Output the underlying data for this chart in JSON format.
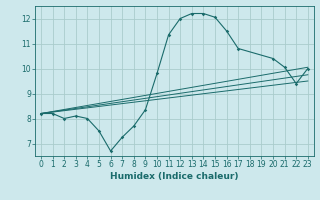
{
  "bg_color": "#cde8ec",
  "grid_color": "#aacccc",
  "line_color": "#1a6b6b",
  "xlabel": "Humidex (Indice chaleur)",
  "xlim": [
    -0.5,
    23.5
  ],
  "ylim": [
    6.5,
    12.5
  ],
  "yticks": [
    7,
    8,
    9,
    10,
    11,
    12
  ],
  "xticks": [
    0,
    1,
    2,
    3,
    4,
    5,
    6,
    7,
    8,
    9,
    10,
    11,
    12,
    13,
    14,
    15,
    16,
    17,
    18,
    19,
    20,
    21,
    22,
    23
  ],
  "main_line": {
    "x": [
      0,
      1,
      2,
      3,
      4,
      5,
      6,
      7,
      8,
      9,
      10,
      11,
      12,
      13,
      14,
      15,
      16,
      17,
      20,
      21,
      22,
      23
    ],
    "y": [
      8.2,
      8.2,
      8.0,
      8.1,
      8.0,
      7.5,
      6.7,
      7.25,
      7.7,
      8.35,
      9.8,
      11.35,
      12.0,
      12.2,
      12.2,
      12.05,
      11.5,
      10.8,
      10.4,
      10.05,
      9.4,
      10.0
    ]
  },
  "straight_lines": [
    {
      "x": [
        0,
        23
      ],
      "y": [
        8.2,
        10.05
      ]
    },
    {
      "x": [
        0,
        23
      ],
      "y": [
        8.2,
        9.75
      ]
    },
    {
      "x": [
        0,
        23
      ],
      "y": [
        8.2,
        9.5
      ]
    }
  ],
  "tick_fontsize": 5.5,
  "xlabel_fontsize": 6.5
}
